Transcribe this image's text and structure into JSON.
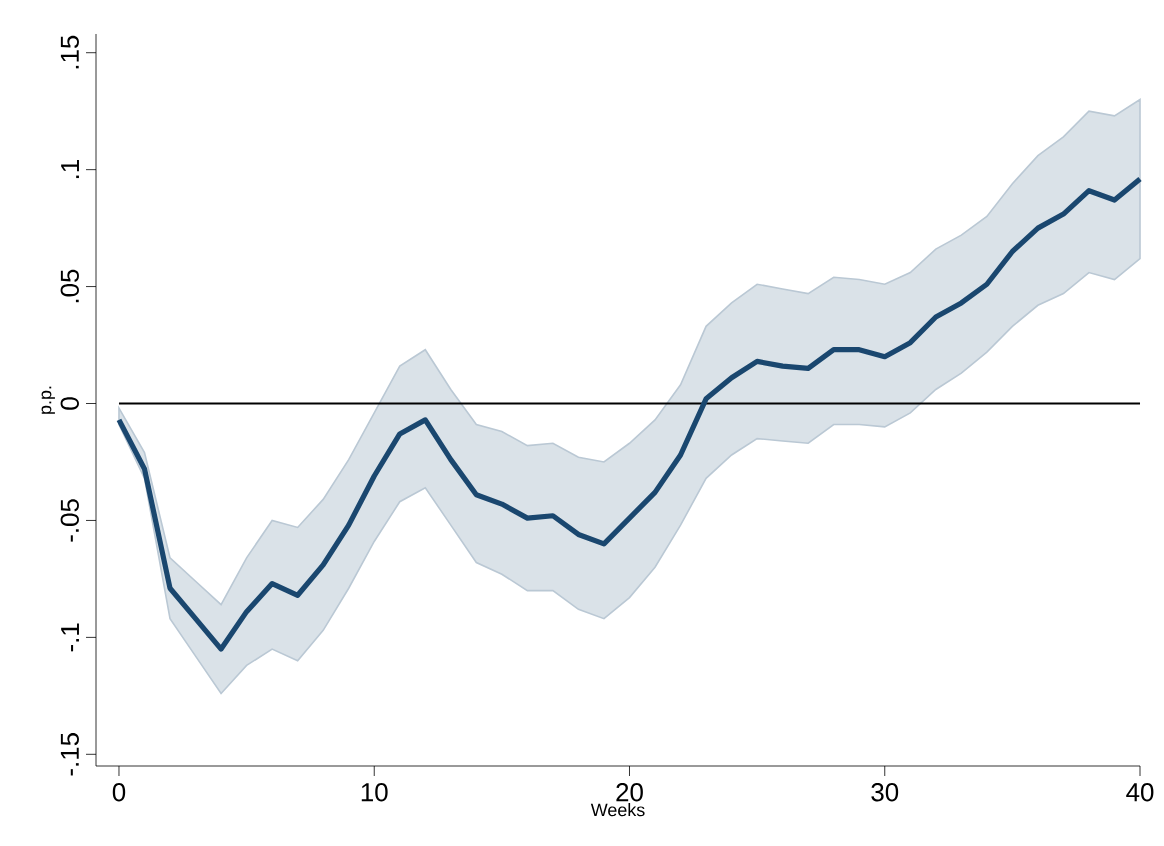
{
  "chart_data": {
    "type": "line",
    "xlabel": "Weeks",
    "ylabel": "p.p.",
    "x": [
      0,
      1,
      2,
      3,
      4,
      5,
      6,
      7,
      8,
      9,
      10,
      11,
      12,
      13,
      14,
      15,
      16,
      17,
      18,
      19,
      20,
      21,
      22,
      23,
      24,
      25,
      26,
      27,
      28,
      29,
      30,
      31,
      32,
      33,
      34,
      35,
      36,
      37,
      38,
      39,
      40
    ],
    "series": [
      {
        "color": "#1a476f",
        "values": [
          -0.007,
          -0.028,
          -0.079,
          -0.092,
          -0.105,
          -0.089,
          -0.077,
          -0.082,
          -0.069,
          -0.052,
          -0.031,
          -0.013,
          -0.007,
          -0.024,
          -0.039,
          -0.043,
          -0.049,
          -0.048,
          -0.056,
          -0.06,
          -0.049,
          -0.038,
          -0.022,
          0.002,
          0.011,
          0.018,
          0.016,
          0.015,
          0.023,
          0.023,
          0.02,
          0.026,
          0.037,
          0.043,
          0.051,
          0.065,
          0.075,
          0.081,
          0.091,
          0.087,
          0.096
        ],
        "lower": [
          -0.009,
          -0.032,
          -0.092,
          -0.108,
          -0.124,
          -0.112,
          -0.105,
          -0.11,
          -0.097,
          -0.079,
          -0.059,
          -0.042,
          -0.036,
          -0.052,
          -0.068,
          -0.073,
          -0.08,
          -0.08,
          -0.088,
          -0.092,
          -0.083,
          -0.07,
          -0.052,
          -0.032,
          -0.022,
          -0.015,
          -0.016,
          -0.017,
          -0.009,
          -0.009,
          -0.01,
          -0.004,
          0.006,
          0.013,
          0.022,
          0.033,
          0.042,
          0.047,
          0.056,
          0.053,
          0.062
        ],
        "upper": [
          -0.002,
          -0.021,
          -0.066,
          -0.076,
          -0.086,
          -0.066,
          -0.05,
          -0.053,
          -0.041,
          -0.024,
          -0.004,
          0.016,
          0.023,
          0.006,
          -0.009,
          -0.012,
          -0.018,
          -0.017,
          -0.023,
          -0.025,
          -0.017,
          -0.007,
          0.008,
          0.033,
          0.043,
          0.051,
          0.049,
          0.047,
          0.054,
          0.053,
          0.051,
          0.056,
          0.066,
          0.072,
          0.08,
          0.094,
          0.106,
          0.114,
          0.125,
          0.123,
          0.13
        ]
      }
    ],
    "xlim": [
      -0.9,
      40
    ],
    "ylim": [
      -0.155,
      0.158
    ],
    "xticks": [
      0,
      10,
      20,
      30,
      40
    ],
    "yticks": [
      {
        "value": -0.15,
        "label": "-.15"
      },
      {
        "value": -0.1,
        "label": "-.1"
      },
      {
        "value": -0.05,
        "label": "-.05"
      },
      {
        "value": 0,
        "label": "0"
      },
      {
        "value": 0.05,
        "label": ".05"
      },
      {
        "value": 0.1,
        "label": ".1"
      },
      {
        "value": 0.15,
        "label": ".15"
      }
    ],
    "ref_lines": [
      {
        "axis": "y",
        "value": 0,
        "color": "#000000"
      }
    ],
    "grid": false,
    "legend": false,
    "marker": "none",
    "line_style": "solid"
  }
}
